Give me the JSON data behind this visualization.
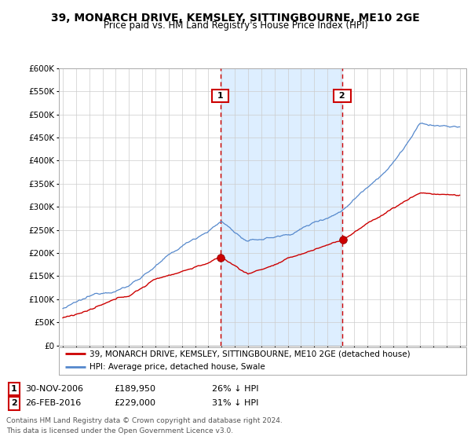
{
  "title": "39, MONARCH DRIVE, KEMSLEY, SITTINGBOURNE, ME10 2GE",
  "subtitle": "Price paid vs. HM Land Registry's House Price Index (HPI)",
  "ylim": [
    0,
    600000
  ],
  "yticks": [
    0,
    50000,
    100000,
    150000,
    200000,
    250000,
    300000,
    350000,
    400000,
    450000,
    500000,
    550000,
    600000
  ],
  "sale1_date": "30-NOV-2006",
  "sale1_price": 189950,
  "sale1_pct": "26% ↓ HPI",
  "sale2_date": "26-FEB-2016",
  "sale2_price": 229000,
  "sale2_pct": "31% ↓ HPI",
  "legend_label1": "39, MONARCH DRIVE, KEMSLEY, SITTINGBOURNE, ME10 2GE (detached house)",
  "legend_label2": "HPI: Average price, detached house, Swale",
  "footer": "Contains HM Land Registry data © Crown copyright and database right 2024.\nThis data is licensed under the Open Government Licence v3.0.",
  "line1_color": "#cc0000",
  "line2_color": "#5588cc",
  "vline_color": "#cc0000",
  "shade_color": "#ddeeff",
  "background_color": "#ffffff",
  "plot_bg_color": "#ffffff",
  "grid_color": "#cccccc",
  "sale1_year": 2006.917,
  "sale2_year": 2016.125,
  "xlim_left": 1994.7,
  "xlim_right": 2025.5
}
